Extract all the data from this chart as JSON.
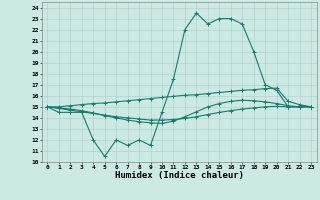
{
  "background_color": "#cce9e4",
  "grid_color": "#aacccc",
  "line_color": "#1a7a6e",
  "xlabel": "Humidex (Indice chaleur)",
  "xlim": [
    -0.5,
    23.5
  ],
  "ylim": [
    10,
    24.5
  ],
  "xticks": [
    0,
    1,
    2,
    3,
    4,
    5,
    6,
    7,
    8,
    9,
    10,
    11,
    12,
    13,
    14,
    15,
    16,
    17,
    18,
    19,
    20,
    21,
    22,
    23
  ],
  "yticks": [
    10,
    11,
    12,
    13,
    14,
    15,
    16,
    17,
    18,
    19,
    20,
    21,
    22,
    23,
    24
  ],
  "series1_x": [
    0,
    1,
    2,
    3,
    4,
    5,
    6,
    7,
    8,
    9,
    10,
    11,
    12,
    13,
    14,
    15,
    16,
    17,
    18,
    19,
    20,
    21,
    22,
    23
  ],
  "series1_y": [
    15.0,
    14.5,
    14.5,
    14.5,
    12.0,
    10.5,
    12.0,
    11.5,
    12.0,
    11.5,
    14.5,
    17.5,
    22.0,
    23.5,
    22.5,
    23.0,
    23.0,
    22.5,
    20.0,
    17.0,
    16.5,
    15.0,
    15.0,
    15.0
  ],
  "series2_x": [
    0,
    1,
    2,
    3,
    4,
    5,
    6,
    7,
    8,
    9,
    10,
    11,
    12,
    13,
    14,
    15,
    16,
    17,
    18,
    19,
    20,
    21,
    22,
    23
  ],
  "series2_y": [
    15.0,
    15.0,
    15.1,
    15.2,
    15.3,
    15.35,
    15.45,
    15.55,
    15.65,
    15.75,
    15.85,
    15.95,
    16.05,
    16.1,
    16.2,
    16.3,
    16.4,
    16.5,
    16.55,
    16.65,
    16.7,
    15.5,
    15.2,
    15.0
  ],
  "series3_x": [
    0,
    1,
    2,
    3,
    4,
    5,
    6,
    7,
    8,
    9,
    10,
    11,
    12,
    13,
    14,
    15,
    16,
    17,
    18,
    19,
    20,
    21,
    22,
    23
  ],
  "series3_y": [
    15.0,
    14.85,
    14.7,
    14.55,
    14.4,
    14.25,
    14.1,
    14.0,
    13.9,
    13.8,
    13.8,
    13.85,
    13.95,
    14.1,
    14.3,
    14.5,
    14.65,
    14.8,
    14.9,
    15.0,
    15.05,
    15.0,
    15.0,
    15.0
  ],
  "series4_x": [
    0,
    1,
    2,
    3,
    4,
    5,
    6,
    7,
    8,
    9,
    10,
    11,
    12,
    13,
    14,
    15,
    16,
    17,
    18,
    19,
    20,
    21,
    22,
    23
  ],
  "series4_y": [
    15.0,
    14.9,
    14.8,
    14.65,
    14.45,
    14.2,
    14.0,
    13.8,
    13.65,
    13.55,
    13.5,
    13.7,
    14.1,
    14.55,
    15.0,
    15.3,
    15.5,
    15.6,
    15.55,
    15.45,
    15.3,
    15.1,
    15.0,
    15.0
  ]
}
